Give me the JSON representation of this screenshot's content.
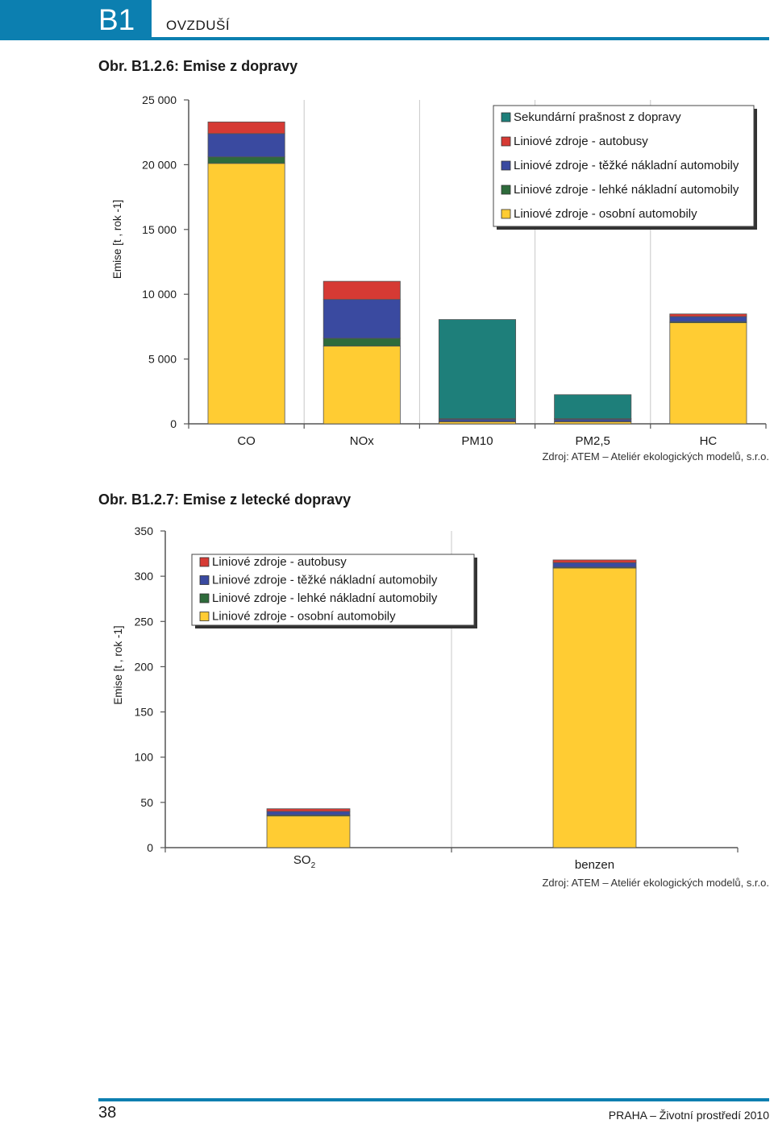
{
  "header": {
    "code": "B1",
    "section": "OVZDUŠÍ"
  },
  "figure1": {
    "title": "Obr. B1.2.6: Emise z dopravy",
    "source": "Zdroj: ATEM – Ateliér ekologických modelů, s.r.o."
  },
  "figure2": {
    "title": "Obr. B1.2.7: Emise z letecké dopravy",
    "source": "Zdroj: ATEM – Ateliér ekologických modelů, s.r.o."
  },
  "footer": {
    "page": "38",
    "text": "PRAHA – Životní prostředí 2010"
  },
  "colors": {
    "osobni": "#ffcc33",
    "lehke": "#2e6b3b",
    "tezke": "#3a4aa0",
    "autobusy": "#d63a34",
    "prasnost": "#1e7f7a",
    "brand": "#0c7fb0"
  },
  "chart_data": [
    {
      "type": "bar",
      "stacked": true,
      "title": "",
      "ylabel": "Emise [t , rok -1]",
      "ylim": [
        0,
        25000
      ],
      "yticks": [
        0,
        5000,
        10000,
        15000,
        20000,
        25000
      ],
      "ytick_labels": [
        "0",
        "5 000",
        "10 000",
        "15 000",
        "20 000",
        "25 000"
      ],
      "categories": [
        "CO",
        "NOx",
        "PM10",
        "PM2,5",
        "HC"
      ],
      "legend_position": "top-right",
      "series": [
        {
          "name": "Liniové zdroje - osobní automobily",
          "key": "osobni",
          "values": [
            20100,
            6000,
            150,
            150,
            7800
          ]
        },
        {
          "name": "Liniové zdroje - lehké nákladní automobily",
          "key": "lehke",
          "values": [
            500,
            600,
            50,
            50,
            80
          ]
        },
        {
          "name": "Liniové zdroje - těžké nákladní automobily",
          "key": "tezke",
          "values": [
            1800,
            3000,
            150,
            150,
            400
          ]
        },
        {
          "name": "Liniové zdroje - autobusy",
          "key": "autobusy",
          "values": [
            900,
            1400,
            50,
            50,
            200
          ]
        },
        {
          "name": "Sekundární prašnost z dopravy",
          "key": "prasnost",
          "values": [
            0,
            0,
            7650,
            1850,
            0
          ]
        }
      ],
      "legend_order": [
        "prasnost",
        "autobusy",
        "tezke",
        "lehke",
        "osobni"
      ]
    },
    {
      "type": "bar",
      "stacked": true,
      "title": "",
      "ylabel": "Emise [t , rok -1]",
      "ylim": [
        0,
        350
      ],
      "yticks": [
        0,
        50,
        100,
        150,
        200,
        250,
        300,
        350
      ],
      "ytick_labels": [
        "0",
        "50",
        "100",
        "150",
        "200",
        "250",
        "300",
        "350"
      ],
      "categories": [
        "SO",
        "benzen"
      ],
      "category_subscripts": [
        "2",
        ""
      ],
      "legend_position": "top-left",
      "series": [
        {
          "name": "Liniové zdroje - osobní automobily",
          "key": "osobni",
          "values": [
            35,
            309
          ]
        },
        {
          "name": "Liniové zdroje - lehké nákladní automobily",
          "key": "lehke",
          "values": [
            1,
            1
          ]
        },
        {
          "name": "Liniové zdroje - těžké nákladní automobily",
          "key": "tezke",
          "values": [
            4,
            5
          ]
        },
        {
          "name": "Liniové zdroje - autobusy",
          "key": "autobusy",
          "values": [
            3,
            3
          ]
        }
      ],
      "legend_order": [
        "autobusy",
        "tezke",
        "lehke",
        "osobni"
      ]
    }
  ]
}
